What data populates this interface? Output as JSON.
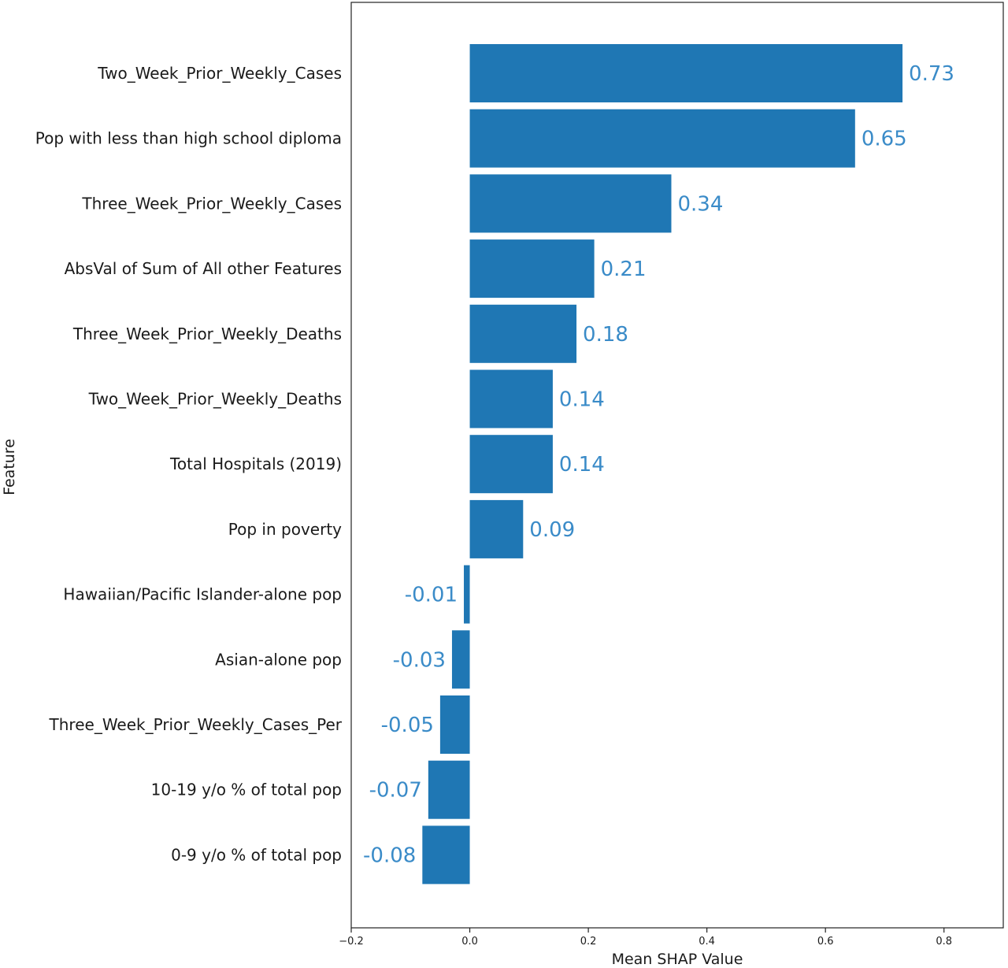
{
  "chart_data": {
    "type": "bar",
    "orientation": "horizontal",
    "categories": [
      "Two_Week_Prior_Weekly_Cases",
      "Pop with less than high school diploma",
      "Three_Week_Prior_Weekly_Cases",
      "AbsVal of Sum of All other Features",
      "Three_Week_Prior_Weekly_Deaths",
      "Two_Week_Prior_Weekly_Deaths",
      "Total Hospitals (2019)",
      "Pop in poverty",
      "Hawaiian/Pacific Islander-alone pop",
      "Asian-alone pop",
      "Three_Week_Prior_Weekly_Cases_Per",
      "10-19 y/o % of total pop",
      "0-9 y/o % of total pop"
    ],
    "values": [
      0.73,
      0.65,
      0.34,
      0.21,
      0.18,
      0.14,
      0.14,
      0.09,
      -0.01,
      -0.03,
      -0.05,
      -0.07,
      -0.08
    ],
    "value_labels": [
      "0.73",
      "0.65",
      "0.34",
      "0.21",
      "0.18",
      "0.14",
      "0.14",
      "0.09",
      "-0.01",
      "-0.03",
      "-0.05",
      "-0.07",
      "-0.08"
    ],
    "xlabel": "Mean SHAP Value",
    "ylabel": "Feature",
    "xlim": [
      -0.2,
      0.9
    ],
    "xticks": [
      -0.2,
      0.0,
      0.2,
      0.4,
      0.6,
      0.8
    ],
    "xtick_labels": [
      "−0.2",
      "0.0",
      "0.2",
      "0.4",
      "0.6",
      "0.8"
    ],
    "grid": false,
    "bar_color": "#1f77b4",
    "label_color": "#3a8bc8"
  }
}
